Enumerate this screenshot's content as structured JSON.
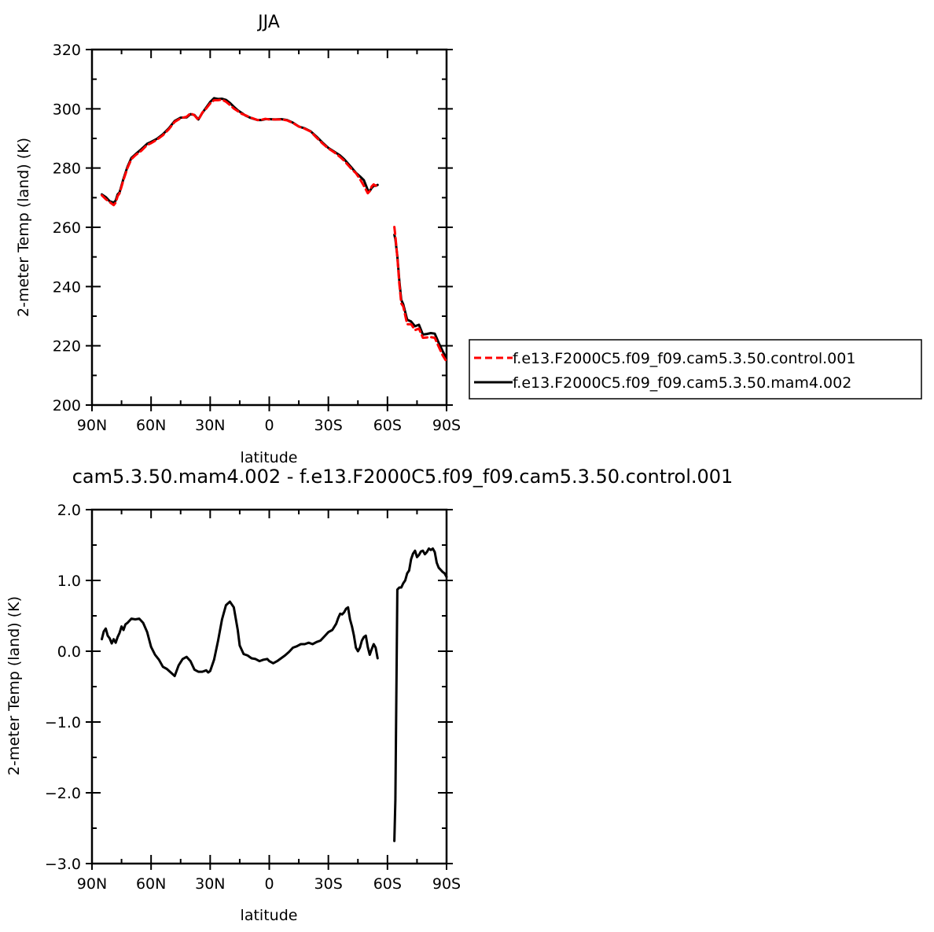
{
  "chart_data": [
    {
      "type": "line",
      "title": "JJA",
      "xlabel": "latitude",
      "ylabel": "2-meter Temp (land) (K)",
      "xlim": [
        90,
        -90
      ],
      "ylim": [
        200,
        320
      ],
      "yticks": [
        200,
        220,
        240,
        260,
        280,
        300,
        320
      ],
      "ytick_labels": [
        "200",
        "220",
        "240",
        "260",
        "280",
        "300",
        "320"
      ],
      "xticks": [
        90,
        60,
        30,
        0,
        -30,
        -60,
        -90
      ],
      "xtick_labels": [
        "90N",
        "60N",
        "30N",
        "0",
        "30S",
        "60S",
        "90S"
      ],
      "legend_position": "right",
      "series": [
        {
          "name": "f.e13.F2000C5.f09_f09.cam5.3.50.control.001",
          "color": "#ff0000",
          "dash": "dashed",
          "segments": [
            {
              "x": [
                85,
                83,
                81,
                79,
                78,
                77,
                76,
                74,
                72,
                70,
                68,
                65,
                62,
                60,
                57,
                54,
                51,
                48,
                45,
                42,
                40,
                38,
                36,
                34,
                32,
                30,
                28,
                26,
                24,
                22,
                20,
                18,
                16,
                14,
                12,
                10,
                8,
                6,
                4,
                2,
                0,
                -3,
                -6,
                -9,
                -12,
                -15,
                -18,
                -21,
                -24,
                -27,
                -30,
                -33,
                -36,
                -38,
                -40,
                -42,
                -44,
                -46,
                -48,
                -50,
                -51,
                -52,
                -53,
                -54,
                -55
              ],
              "y": [
                270.8,
                269.5,
                268.5,
                267.5,
                268.3,
                270.5,
                271.5,
                276,
                280,
                283,
                284.3,
                285.8,
                287.8,
                288.4,
                289.6,
                291.1,
                293.1,
                295.6,
                296.8,
                297.3,
                298.5,
                297.8,
                296.2,
                298.7,
                300.1,
                301.8,
                302.9,
                302.9,
                303.1,
                302.4,
                301.3,
                300.1,
                299.2,
                298.3,
                297.8,
                297.2,
                296.7,
                296.2,
                296.3,
                296.6,
                296.4,
                296.4,
                296.4,
                296.1,
                295.2,
                294.0,
                293.3,
                292.3,
                290.3,
                288.3,
                286.6,
                285.3,
                283.7,
                282.5,
                281.0,
                279.5,
                278.3,
                276.3,
                274.0,
                271.5,
                272.2,
                273.8,
                274.5,
                274.0,
                275.0
              ]
            },
            {
              "x": [
                -63.5,
                -64,
                -65,
                -66,
                -67,
                -68,
                -70,
                -72,
                -74,
                -76,
                -78,
                -80,
                -82,
                -84,
                -86,
                -88,
                -89.5
              ],
              "y": [
                260.1,
                257.0,
                250.0,
                241.0,
                234.3,
                233.3,
                227.3,
                227.3,
                225.3,
                225.8,
                222.7,
                222.8,
                222.9,
                222.7,
                219.7,
                216.8,
                215.2
              ]
            }
          ]
        },
        {
          "name": "f.e13.F2000C5.f09_f09.cam5.3.50.mam4.002",
          "color": "#000000",
          "dash": "solid",
          "segments": [
            {
              "x": [
                85,
                83,
                81,
                79,
                78,
                77,
                76,
                74,
                72,
                70,
                68,
                65,
                62,
                60,
                57,
                54,
                51,
                48,
                45,
                42,
                40,
                38,
                36,
                34,
                32,
                30,
                28,
                26,
                24,
                22,
                20,
                18,
                16,
                14,
                12,
                10,
                8,
                6,
                4,
                2,
                0,
                -3,
                -6,
                -9,
                -12,
                -15,
                -18,
                -21,
                -24,
                -27,
                -30,
                -33,
                -36,
                -38,
                -40,
                -42,
                -44,
                -46,
                -48,
                -50,
                -51,
                -52,
                -53,
                -54,
                -55
              ],
              "y": [
                271.1,
                270.2,
                268.8,
                268.3,
                269.0,
                271.1,
                271.8,
                276.4,
                280.4,
                283.4,
                284.6,
                286.3,
                288.2,
                288.8,
                289.9,
                291.4,
                293.4,
                295.9,
                297.0,
                297.1,
                298.2,
                297.9,
                296.4,
                298.6,
                300.4,
                302.3,
                303.6,
                303.3,
                303.4,
                303.0,
                302.0,
                300.7,
                299.5,
                298.6,
                297.7,
                297.1,
                296.6,
                296.2,
                296.2,
                296.5,
                296.5,
                296.4,
                296.5,
                296.2,
                295.3,
                294.0,
                293.4,
                292.4,
                290.6,
                288.6,
                286.8,
                285.5,
                284.2,
                283.0,
                281.5,
                280.0,
                278.4,
                277.2,
                275.9,
                272.6,
                272.2,
                273.3,
                274.0,
                274.0,
                274.3
              ]
            },
            {
              "x": [
                -63.5,
                -64,
                -65,
                -66,
                -67,
                -68,
                -70,
                -72,
                -74,
                -76,
                -78,
                -80,
                -82,
                -84,
                -86,
                -88,
                -89.5
              ],
              "y": [
                257.5,
                256.0,
                250.2,
                242.0,
                235.5,
                234.0,
                228.8,
                228.2,
                226.6,
                227.1,
                223.8,
                224.0,
                224.3,
                224.1,
                221.0,
                218.2,
                216.3
              ]
            }
          ]
        }
      ]
    },
    {
      "type": "line",
      "title": "cam5.3.50.mam4.002 - f.e13.F2000C5.f09_f09.cam5.3.50.control.001",
      "xlabel": "latitude",
      "ylabel": "2-meter Temp (land) (K)",
      "xlim": [
        90,
        -90
      ],
      "ylim": [
        -3.0,
        2.0
      ],
      "yticks": [
        -3.0,
        -2.0,
        -1.0,
        0.0,
        1.0,
        2.0
      ],
      "ytick_labels": [
        "−3.0",
        "−2.0",
        "−1.0",
        "0.0",
        "1.0",
        "2.0"
      ],
      "xticks": [
        90,
        60,
        30,
        0,
        -30,
        -60,
        -90
      ],
      "xtick_labels": [
        "90N",
        "60N",
        "30N",
        "0",
        "30S",
        "60S",
        "90S"
      ],
      "series": [
        {
          "color": "#000000",
          "dash": "solid",
          "segments": [
            {
              "x": [
                85,
                84,
                83,
                82,
                81,
                80,
                79,
                78,
                77,
                76,
                75,
                74,
                73,
                72,
                70,
                68,
                66,
                64,
                62,
                60,
                58,
                56,
                54,
                52,
                50,
                48,
                46,
                44,
                42,
                40,
                38,
                36,
                34,
                32,
                31,
                30,
                28,
                26,
                24,
                22,
                20,
                18,
                17,
                16,
                15,
                13,
                11,
                9,
                7,
                5,
                3,
                1,
                0,
                -2,
                -4,
                -6,
                -8,
                -10,
                -12,
                -14,
                -16,
                -18,
                -20,
                -22,
                -24,
                -26,
                -28,
                -30,
                -32,
                -34,
                -35,
                -36,
                -37,
                -38,
                -39,
                -40,
                -41,
                -42,
                -43,
                -44,
                -45,
                -46,
                -47,
                -48,
                -49,
                -50,
                -51,
                -52,
                -53,
                -54,
                -55
              ],
              "y": [
                0.17,
                0.28,
                0.32,
                0.22,
                0.18,
                0.11,
                0.17,
                0.12,
                0.2,
                0.26,
                0.35,
                0.3,
                0.38,
                0.4,
                0.46,
                0.45,
                0.46,
                0.4,
                0.27,
                0.06,
                -0.05,
                -0.12,
                -0.22,
                -0.25,
                -0.3,
                -0.35,
                -0.2,
                -0.11,
                -0.08,
                -0.14,
                -0.26,
                -0.29,
                -0.29,
                -0.27,
                -0.3,
                -0.28,
                -0.12,
                0.15,
                0.45,
                0.65,
                0.7,
                0.62,
                0.46,
                0.3,
                0.08,
                -0.04,
                -0.06,
                -0.1,
                -0.11,
                -0.14,
                -0.12,
                -0.11,
                -0.14,
                -0.17,
                -0.14,
                -0.1,
                -0.06,
                -0.01,
                0.05,
                0.07,
                0.1,
                0.1,
                0.12,
                0.1,
                0.13,
                0.15,
                0.21,
                0.27,
                0.3,
                0.39,
                0.47,
                0.53,
                0.52,
                0.55,
                0.6,
                0.62,
                0.45,
                0.35,
                0.22,
                0.05,
                0.0,
                0.05,
                0.15,
                0.2,
                0.22,
                0.06,
                -0.05,
                0.03,
                0.1,
                0.05,
                -0.1
              ]
            },
            {
              "x": [
                -63.5,
                -64,
                -65,
                -66,
                -67,
                -68,
                -69,
                -70,
                -71,
                -72,
                -73,
                -74,
                -75,
                -76,
                -77,
                -78,
                -79,
                -80,
                -81,
                -82,
                -83,
                -84,
                -85,
                -86,
                -87,
                -88,
                -89,
                -90
              ],
              "y": [
                -2.68,
                -2.1,
                0.87,
                0.9,
                0.9,
                0.96,
                1.0,
                1.1,
                1.14,
                1.3,
                1.38,
                1.42,
                1.33,
                1.36,
                1.41,
                1.42,
                1.37,
                1.4,
                1.45,
                1.43,
                1.45,
                1.4,
                1.25,
                1.18,
                1.15,
                1.12,
                1.1,
                1.05
              ]
            }
          ]
        }
      ]
    }
  ]
}
